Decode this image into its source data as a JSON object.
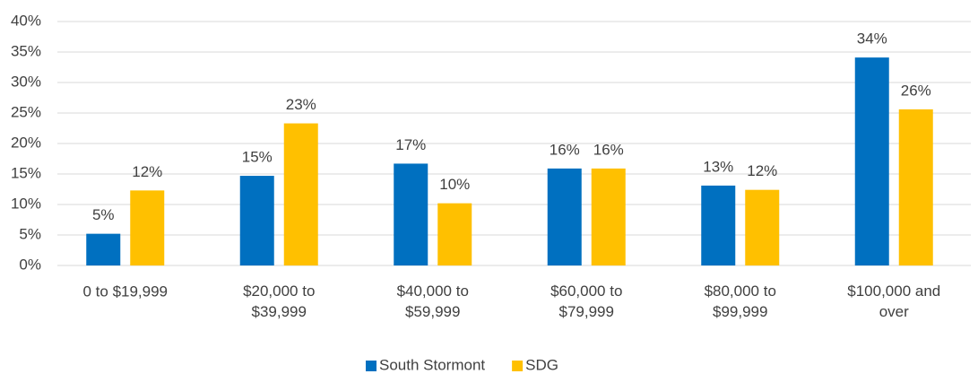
{
  "chart_data": {
    "type": "bar",
    "categories": [
      "0 to $19,999",
      "$20,000 to\n$39,999",
      "$40,000 to\n$59,999",
      "$60,000 to\n$79,999",
      "$80,000 to\n$99,999",
      "$100,000 and\nover"
    ],
    "series": [
      {
        "name": "South Stormont",
        "color": "#0070c0",
        "values": [
          5.2,
          14.7,
          16.7,
          15.9,
          13.1,
          34.1
        ],
        "value_labels": [
          "5%",
          "15%",
          "17%",
          "16%",
          "13%",
          "34%"
        ]
      },
      {
        "name": "SDG",
        "color": "#ffc000",
        "values": [
          12.3,
          23.3,
          10.2,
          15.9,
          12.4,
          25.6
        ],
        "value_labels": [
          "12%",
          "23%",
          "10%",
          "16%",
          "12%",
          "26%"
        ]
      }
    ],
    "ylim": [
      0,
      40
    ],
    "yticks": [
      {
        "value": 0,
        "label": "0%"
      },
      {
        "value": 5,
        "label": "5%"
      },
      {
        "value": 10,
        "label": "10%"
      },
      {
        "value": 15,
        "label": "15%"
      },
      {
        "value": 20,
        "label": "20%"
      },
      {
        "value": 25,
        "label": "25%"
      },
      {
        "value": 30,
        "label": "30%"
      },
      {
        "value": 35,
        "label": "35%"
      },
      {
        "value": 40,
        "label": "40%"
      }
    ],
    "grid": true,
    "legend": "bottom"
  }
}
